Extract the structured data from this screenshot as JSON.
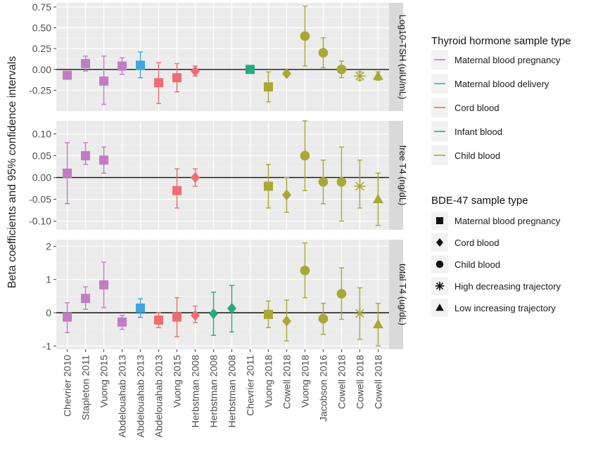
{
  "chart_data": {
    "type": "scatter",
    "ylabel": "Beta coefficients and 95% confidence intervals",
    "categories": [
      "Chevrier 2010",
      "Stapleton 2011",
      "Vuong 2015",
      "Abdelouahab 2013",
      "Abdelouahab 2013",
      "Abdelouahab 2013",
      "Vuong 2015",
      "Herbstman 2008",
      "Herbstman 2008",
      "Herbstman 2008",
      "Chevrier 2011",
      "Vuong 2018",
      "Cowell 2018",
      "Vuong 2018",
      "Jacobson 2016",
      "Cowell 2018",
      "Cowell 2018",
      "Cowell 2018"
    ],
    "grid": true,
    "panels": [
      {
        "strip": "Log10-TSH (uIU/mL)",
        "ylim": [
          -0.5,
          0.8
        ],
        "yticks": [
          -0.25,
          0.0,
          0.25,
          0.5,
          0.75
        ],
        "yticklabels": [
          "-0.25",
          "0.00",
          "0.25",
          "0.50",
          "0.75"
        ],
        "points": [
          {
            "x": 1,
            "y": -0.07,
            "lo": -0.11,
            "hi": -0.04,
            "color_group": 0,
            "shape": "square"
          },
          {
            "x": 2,
            "y": 0.07,
            "lo": -0.02,
            "hi": 0.16,
            "color_group": 0,
            "shape": "square"
          },
          {
            "x": 3,
            "y": -0.14,
            "lo": -0.42,
            "hi": 0.16,
            "color_group": 0,
            "shape": "square"
          },
          {
            "x": 4,
            "y": 0.04,
            "lo": -0.06,
            "hi": 0.14,
            "color_group": 0,
            "shape": "square"
          },
          {
            "x": 5,
            "y": 0.05,
            "lo": -0.1,
            "hi": 0.21,
            "color_group": 1,
            "shape": "square"
          },
          {
            "x": 6,
            "y": -0.16,
            "lo": -0.41,
            "hi": 0.08,
            "color_group": 2,
            "shape": "square"
          },
          {
            "x": 7,
            "y": -0.1,
            "lo": -0.27,
            "hi": 0.07,
            "color_group": 2,
            "shape": "square"
          },
          {
            "x": 8,
            "y": -0.02,
            "lo": -0.08,
            "hi": 0.04,
            "color_group": 2,
            "shape": "diamond"
          },
          {
            "x": 11,
            "y": 0.0,
            "lo": -0.02,
            "hi": 0.03,
            "color_group": 3,
            "shape": "square"
          },
          {
            "x": 12,
            "y": -0.21,
            "lo": -0.39,
            "hi": -0.03,
            "color_group": 4,
            "shape": "square"
          },
          {
            "x": 13,
            "y": -0.05,
            "lo": -0.08,
            "hi": -0.02,
            "color_group": 4,
            "shape": "diamond"
          },
          {
            "x": 14,
            "y": 0.4,
            "lo": 0.04,
            "hi": 0.76,
            "color_group": 4,
            "shape": "circle"
          },
          {
            "x": 15,
            "y": 0.2,
            "lo": 0.02,
            "hi": 0.38,
            "color_group": 4,
            "shape": "circle"
          },
          {
            "x": 16,
            "y": 0.0,
            "lo": -0.1,
            "hi": 0.1,
            "color_group": 4,
            "shape": "circle"
          },
          {
            "x": 17,
            "y": -0.08,
            "lo": -0.13,
            "hi": -0.03,
            "color_group": 4,
            "shape": "asterisk"
          },
          {
            "x": 18,
            "y": -0.08,
            "lo": -0.13,
            "hi": -0.03,
            "color_group": 4,
            "shape": "triangle"
          }
        ]
      },
      {
        "strip": "free T4 (ng/dL)",
        "ylim": [
          -0.12,
          0.13
        ],
        "yticks": [
          -0.1,
          -0.05,
          0.0,
          0.05,
          0.1
        ],
        "yticklabels": [
          "-0.10",
          "-0.05",
          "0.00",
          "0.05",
          "0.10"
        ],
        "points": [
          {
            "x": 1,
            "y": 0.01,
            "lo": -0.06,
            "hi": 0.08,
            "color_group": 0,
            "shape": "square"
          },
          {
            "x": 2,
            "y": 0.05,
            "lo": 0.03,
            "hi": 0.08,
            "color_group": 0,
            "shape": "square"
          },
          {
            "x": 3,
            "y": 0.04,
            "lo": 0.01,
            "hi": 0.07,
            "color_group": 0,
            "shape": "square"
          },
          {
            "x": 7,
            "y": -0.03,
            "lo": -0.07,
            "hi": 0.02,
            "color_group": 2,
            "shape": "square"
          },
          {
            "x": 8,
            "y": 0.0,
            "lo": -0.02,
            "hi": 0.02,
            "color_group": 2,
            "shape": "diamond"
          },
          {
            "x": 12,
            "y": -0.02,
            "lo": -0.07,
            "hi": 0.03,
            "color_group": 4,
            "shape": "square"
          },
          {
            "x": 13,
            "y": -0.04,
            "lo": -0.08,
            "hi": 0.0,
            "color_group": 4,
            "shape": "diamond"
          },
          {
            "x": 14,
            "y": 0.05,
            "lo": -0.03,
            "hi": 0.13,
            "color_group": 4,
            "shape": "circle"
          },
          {
            "x": 15,
            "y": -0.01,
            "lo": -0.06,
            "hi": 0.04,
            "color_group": 4,
            "shape": "circle"
          },
          {
            "x": 16,
            "y": -0.01,
            "lo": -0.1,
            "hi": 0.07,
            "color_group": 4,
            "shape": "circle"
          },
          {
            "x": 17,
            "y": -0.02,
            "lo": -0.07,
            "hi": 0.04,
            "color_group": 4,
            "shape": "asterisk"
          },
          {
            "x": 18,
            "y": -0.05,
            "lo": -0.11,
            "hi": 0.01,
            "color_group": 4,
            "shape": "triangle"
          }
        ]
      },
      {
        "strip": "total T4 (ug/dL)",
        "ylim": [
          -1.1,
          2.2
        ],
        "yticks": [
          -1,
          0,
          1,
          2
        ],
        "yticklabels": [
          "-1",
          "0",
          "1",
          "2"
        ],
        "points": [
          {
            "x": 1,
            "y": -0.13,
            "lo": -0.6,
            "hi": 0.3,
            "color_group": 0,
            "shape": "square"
          },
          {
            "x": 2,
            "y": 0.43,
            "lo": 0.1,
            "hi": 0.78,
            "color_group": 0,
            "shape": "square"
          },
          {
            "x": 3,
            "y": 0.84,
            "lo": 0.15,
            "hi": 1.52,
            "color_group": 0,
            "shape": "square"
          },
          {
            "x": 4,
            "y": -0.28,
            "lo": -0.5,
            "hi": -0.08,
            "color_group": 0,
            "shape": "square"
          },
          {
            "x": 5,
            "y": 0.14,
            "lo": -0.14,
            "hi": 0.42,
            "color_group": 1,
            "shape": "square"
          },
          {
            "x": 6,
            "y": -0.22,
            "lo": -0.45,
            "hi": 0.0,
            "color_group": 2,
            "shape": "square"
          },
          {
            "x": 7,
            "y": -0.13,
            "lo": -0.72,
            "hi": 0.45,
            "color_group": 2,
            "shape": "square"
          },
          {
            "x": 8,
            "y": -0.08,
            "lo": -0.3,
            "hi": 0.2,
            "color_group": 2,
            "shape": "diamond"
          },
          {
            "x": 9,
            "y": -0.03,
            "lo": -0.68,
            "hi": 0.62,
            "color_group": 3,
            "shape": "diamond"
          },
          {
            "x": 10,
            "y": 0.13,
            "lo": -0.58,
            "hi": 0.82,
            "color_group": 3,
            "shape": "diamond"
          },
          {
            "x": 12,
            "y": -0.05,
            "lo": -0.45,
            "hi": 0.35,
            "color_group": 4,
            "shape": "square"
          },
          {
            "x": 13,
            "y": -0.25,
            "lo": -0.85,
            "hi": 0.38,
            "color_group": 4,
            "shape": "diamond"
          },
          {
            "x": 14,
            "y": 1.27,
            "lo": 0.45,
            "hi": 2.1,
            "color_group": 4,
            "shape": "circle"
          },
          {
            "x": 15,
            "y": -0.18,
            "lo": -0.65,
            "hi": 0.28,
            "color_group": 4,
            "shape": "circle"
          },
          {
            "x": 16,
            "y": 0.57,
            "lo": -0.2,
            "hi": 1.35,
            "color_group": 4,
            "shape": "circle"
          },
          {
            "x": 17,
            "y": -0.02,
            "lo": -0.8,
            "hi": 0.75,
            "color_group": 4,
            "shape": "asterisk"
          },
          {
            "x": 18,
            "y": -0.35,
            "lo": -1.0,
            "hi": 0.28,
            "color_group": 4,
            "shape": "triangle"
          }
        ]
      }
    ],
    "color_legend": {
      "title": "Thyroid hormone sample type",
      "items": [
        {
          "label": "Maternal blood pregnancy",
          "color": "#C27BC4"
        },
        {
          "label": "Maternal blood delivery",
          "color": "#3FA6E0"
        },
        {
          "label": "Cord blood",
          "color": "#EE6E6E"
        },
        {
          "label": "Infant blood",
          "color": "#27A881"
        },
        {
          "label": "Child blood",
          "color": "#A8A835"
        }
      ]
    },
    "shape_legend": {
      "title": "BDE-47 sample type",
      "items": [
        {
          "label": "Maternal blood pregnancy",
          "shape": "square"
        },
        {
          "label": "Cord blood",
          "shape": "diamond"
        },
        {
          "label": "Child blood",
          "shape": "circle"
        },
        {
          "label": "High decreasing trajectory",
          "shape": "asterisk"
        },
        {
          "label": "Low increasing trajectory",
          "shape": "triangle"
        }
      ]
    },
    "legend_position": "right"
  }
}
